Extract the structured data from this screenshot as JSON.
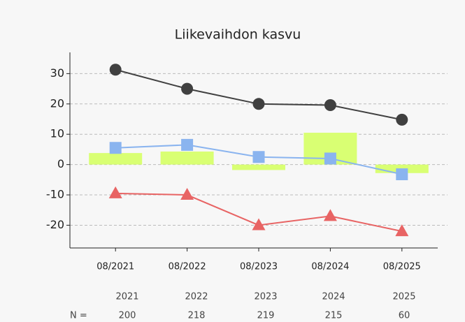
{
  "chart_data": {
    "type": "combo",
    "title": "Liikevaihdon kasvu",
    "categories": [
      "08/2021",
      "08/2022",
      "08/2023",
      "08/2024",
      "08/2025"
    ],
    "series": [
      {
        "marker": "bar",
        "color": "#d9ff73",
        "values": [
          3.8,
          4.3,
          -1.8,
          10.5,
          -2.8
        ]
      },
      {
        "marker": "circle",
        "color": "#404040",
        "values": [
          31.3,
          25,
          20,
          19.6,
          14.8
        ]
      },
      {
        "marker": "square",
        "color": "#8ab4ef",
        "values": [
          5.5,
          6.5,
          2.5,
          2,
          -3.2
        ]
      },
      {
        "marker": "triangle",
        "color": "#e86464",
        "values": [
          -9.5,
          -10,
          -20,
          -17,
          -22
        ]
      }
    ],
    "ylim": [
      -27.5,
      37
    ],
    "yticks": [
      -20,
      -10,
      0,
      10,
      20,
      30
    ],
    "grid": true
  },
  "table": {
    "label": "N =",
    "years": [
      "2021",
      "2022",
      "2023",
      "2024",
      "2025"
    ],
    "counts": [
      200,
      218,
      219,
      215,
      60
    ]
  }
}
